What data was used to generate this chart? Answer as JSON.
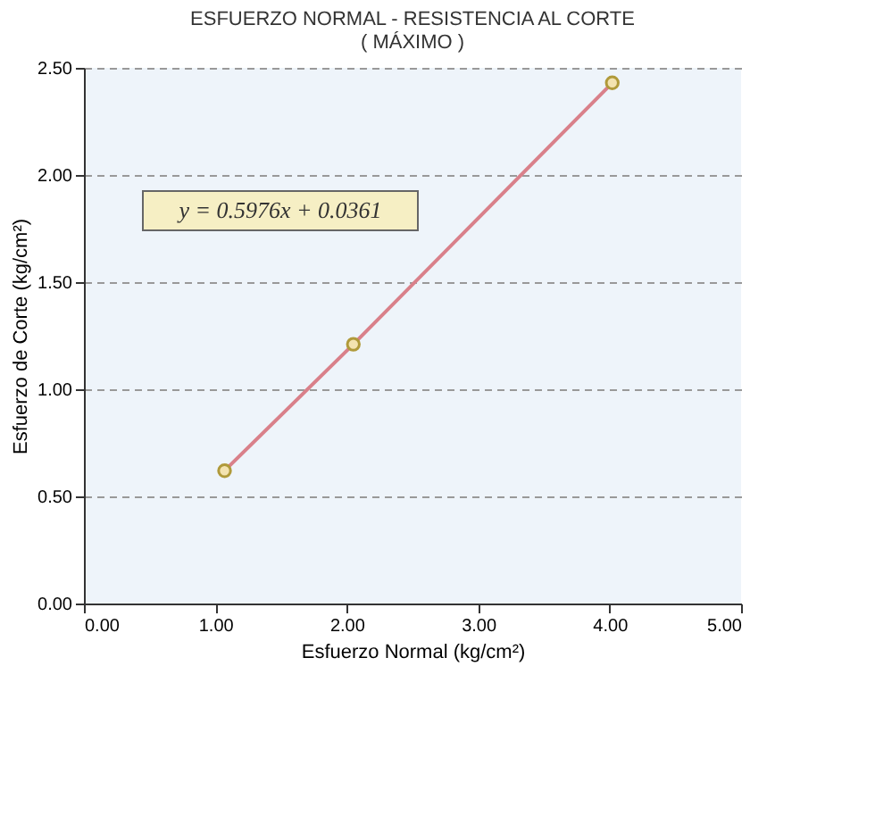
{
  "chart_data": {
    "type": "line",
    "title": "ESFUERZO NORMAL - RESISTENCIA AL CORTE",
    "subtitle": "( MÁXIMO )",
    "xlabel": "Esfuerzo Normal (kg/cm²)",
    "ylabel": "Esfuerzo de Corte (kg/cm²)",
    "x": [
      1.07,
      2.05,
      4.02
    ],
    "series": [
      {
        "color": "#d9808a",
        "values": [
          0.62,
          1.21,
          2.43
        ]
      }
    ],
    "marker": "circle",
    "line_style": "solid",
    "xlim": [
      0,
      5
    ],
    "ylim": [
      0,
      2.5
    ],
    "xticks": [
      {
        "value": 0,
        "label": "0.00"
      },
      {
        "value": 1,
        "label": "1.00"
      },
      {
        "value": 2,
        "label": "2.00"
      },
      {
        "value": 3,
        "label": "3.00"
      },
      {
        "value": 4,
        "label": "4.00"
      },
      {
        "value": 5,
        "label": "5.00"
      }
    ],
    "yticks": [
      {
        "value": 0,
        "label": "0.00"
      },
      {
        "value": 0.5,
        "label": "0.50"
      },
      {
        "value": 1,
        "label": "1.00"
      },
      {
        "value": 1.5,
        "label": "1.50"
      },
      {
        "value": 2,
        "label": "2.00"
      },
      {
        "value": 2.5,
        "label": "2.50"
      }
    ],
    "grid": "y",
    "annotations": [
      "y = 0.5976x + 0.0361"
    ]
  }
}
